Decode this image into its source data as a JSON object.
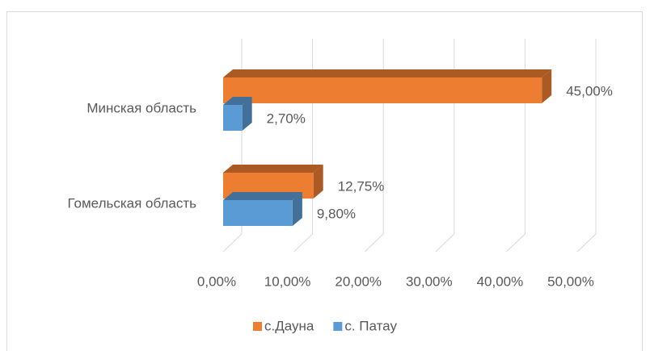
{
  "chart_data": {
    "type": "bar3d",
    "orientation": "horizontal",
    "categories": [
      "Минская область",
      "Гомельская область"
    ],
    "series": [
      {
        "name": "с.Дауна",
        "color": "#ED7D31",
        "values": [
          45,
          12.75
        ],
        "value_labels": [
          "45,00%",
          "12,75%"
        ]
      },
      {
        "name": "с. Патау",
        "color": "#5B9BD5",
        "values": [
          2.7,
          9.8
        ],
        "value_labels": [
          "2,70%",
          "9,80%"
        ]
      }
    ],
    "xlim": [
      0,
      50
    ],
    "xticks": [
      {
        "value": 0,
        "label": "0,00%"
      },
      {
        "value": 10,
        "label": "10,00%"
      },
      {
        "value": 20,
        "label": "20,00%"
      },
      {
        "value": 30,
        "label": "30,00%"
      },
      {
        "value": 40,
        "label": "40,00%"
      },
      {
        "value": 50,
        "label": "50,00%"
      }
    ],
    "grid": true,
    "legend": "bottom"
  }
}
